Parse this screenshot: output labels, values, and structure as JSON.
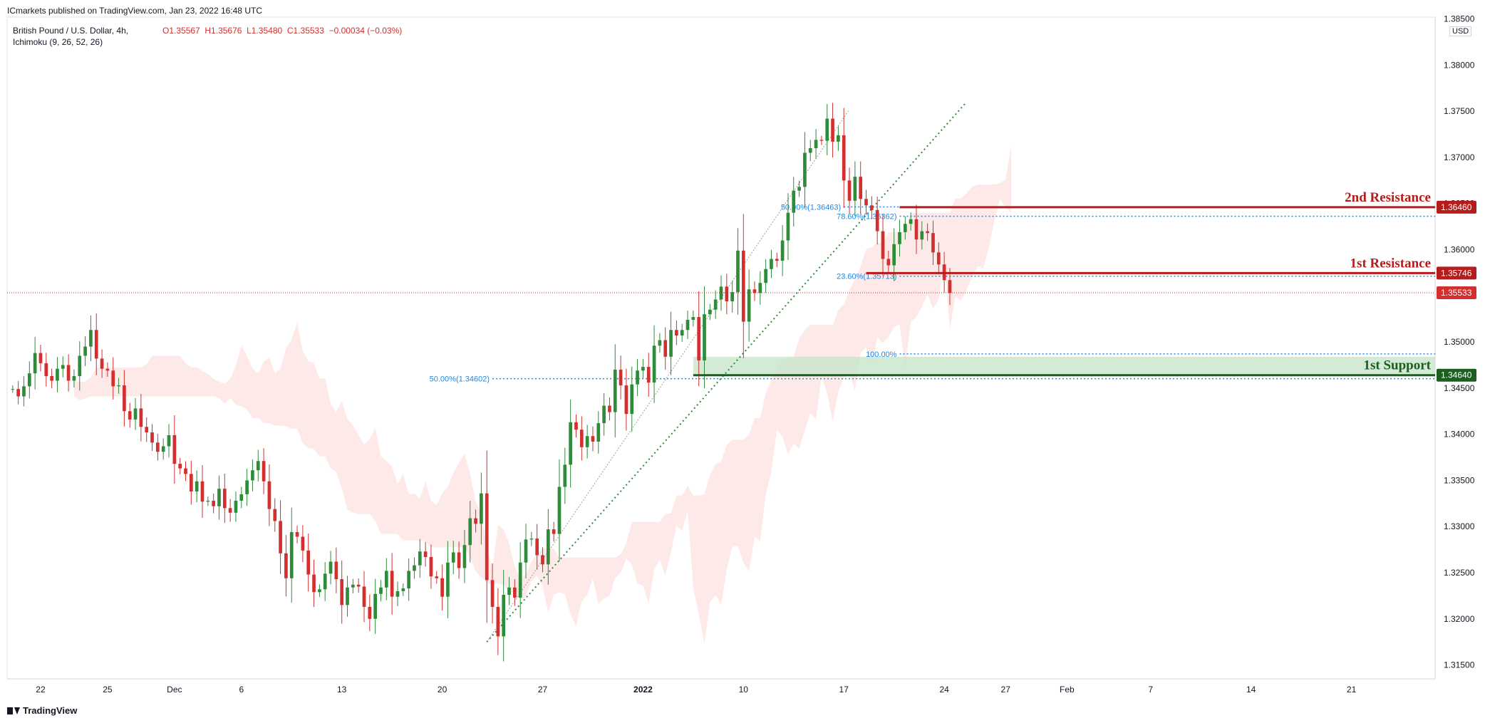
{
  "header": {
    "published": "ICmarkets published on TradingView.com, Jan 23, 2022 16:48 UTC",
    "symbol": "British Pound / U.S. Dollar, 4h,",
    "indicator": "Ichimoku (9, 26, 52, 26)",
    "ohlc": {
      "o": "O1.35567",
      "h": "H1.35676",
      "l": "L1.35480",
      "c": "C1.35533",
      "chg": "−0.00034 (−0.03%)"
    },
    "currency": "USD"
  },
  "footer": {
    "brand": "TradingView"
  },
  "colors": {
    "up": "#26a69a",
    "candle_up": "#2e8b3a",
    "candle_down": "#d32f2f",
    "resistance": "#b71c1c",
    "support": "#1b5e20",
    "fib": "#1e88e5",
    "cloud_red": "#fde2e2",
    "cloud_green": "#e3f2e5",
    "support_zone": "#c8e6c9"
  },
  "chart_data": {
    "type": "candlestick",
    "xaxis_labels": [
      {
        "label": "22",
        "i": 6
      },
      {
        "label": "25",
        "i": 18
      },
      {
        "label": "Dec",
        "i": 30
      },
      {
        "label": "6",
        "i": 42
      },
      {
        "label": "13",
        "i": 60
      },
      {
        "label": "20",
        "i": 78
      },
      {
        "label": "27",
        "i": 96
      },
      {
        "label": "2022",
        "i": 114
      },
      {
        "label": "10",
        "i": 132
      },
      {
        "label": "17",
        "i": 150
      },
      {
        "label": "24",
        "i": 168
      },
      {
        "label": "27",
        "i": 179
      },
      {
        "label": "Feb",
        "i": 190
      },
      {
        "label": "7",
        "i": 205
      },
      {
        "label": "14",
        "i": 223
      },
      {
        "label": "21",
        "i": 241
      }
    ],
    "x_range": [
      0,
      256
    ],
    "ylim": [
      1.3135,
      1.3852
    ],
    "yaxis_ticks": [
      "1.31500",
      "1.32000",
      "1.32500",
      "1.33000",
      "1.33500",
      "1.34000",
      "1.34500",
      "1.35000",
      "1.35500",
      "1.36000",
      "1.36500",
      "1.37000",
      "1.37500",
      "1.38000",
      "1.38500"
    ],
    "price_labels": [
      {
        "label": "1.36460",
        "value": 1.3646,
        "kind": "resistance"
      },
      {
        "label": "1.35746",
        "value": 1.35746,
        "kind": "resistance"
      },
      {
        "label": "1.35533",
        "value": 1.35533,
        "kind": "last"
      },
      {
        "label": "1.34640",
        "value": 1.3464,
        "kind": "support"
      }
    ],
    "levels": [
      {
        "name": "2nd Resistance",
        "value": 1.3646,
        "from_i": 160,
        "color": "resistance"
      },
      {
        "name": "1st Resistance",
        "value": 1.35746,
        "from_i": 154,
        "color": "resistance"
      },
      {
        "name": "1st Support",
        "value": 1.3464,
        "from_i": 123,
        "color": "support"
      }
    ],
    "support_zone": [
      1.3464,
      1.3484
    ],
    "fib_lines": [
      {
        "label": "50.00%(1.36463)",
        "value": 1.36463,
        "from_i": 150,
        "to_i": 256
      },
      {
        "label": "78.60%(1.36362)",
        "value": 1.36362,
        "from_i": 160,
        "to_i": 256
      },
      {
        "label": "23.60%(1.35713)",
        "value": 1.35713,
        "from_i": 160,
        "to_i": 256
      },
      {
        "label": "100.00%",
        "value": 1.3487,
        "from_i": 160,
        "to_i": 256
      },
      {
        "label": "50.00%(1.34602)",
        "value": 1.34602,
        "from_i": 87,
        "to_i": 256
      }
    ],
    "trendline": {
      "from": [
        86,
        1.3175
      ],
      "to": [
        172,
        1.376
      ]
    },
    "channel": {
      "from": [
        86,
        1.3175
      ],
      "to": [
        151,
        1.3752
      ]
    },
    "anchors": [
      {
        "from": [
          0,
          1.3455
        ],
        "to": [
          152,
          1.3752
        ],
        "style": "zigzag"
      }
    ],
    "close_series": [
      1.3449,
      1.3441,
      1.3452,
      1.3466,
      1.3488,
      1.3477,
      1.3463,
      1.3458,
      1.3471,
      1.3475,
      1.3458,
      1.3463,
      1.3485,
      1.3495,
      1.3513,
      1.3482,
      1.3471,
      1.3469,
      1.3452,
      1.3453,
      1.3425,
      1.3416,
      1.3428,
      1.3408,
      1.3402,
      1.3391,
      1.3381,
      1.3387,
      1.3399,
      1.3368,
      1.3363,
      1.3357,
      1.3338,
      1.3349,
      1.3327,
      1.3328,
      1.3322,
      1.3341,
      1.332,
      1.3315,
      1.3328,
      1.3335,
      1.335,
      1.3361,
      1.3371,
      1.3349,
      1.3319,
      1.3306,
      1.3271,
      1.3244,
      1.3294,
      1.3289,
      1.3274,
      1.3248,
      1.3229,
      1.3232,
      1.3249,
      1.3262,
      1.3243,
      1.3215,
      1.3234,
      1.3237,
      1.3235,
      1.3213,
      1.32,
      1.3227,
      1.3234,
      1.3252,
      1.3224,
      1.323,
      1.3233,
      1.3252,
      1.3258,
      1.3273,
      1.3267,
      1.3246,
      1.3244,
      1.3224,
      1.3261,
      1.3272,
      1.3255,
      1.328,
      1.3309,
      1.3303,
      1.3336,
      1.3242,
      1.3213,
      1.3181,
      1.3226,
      1.3234,
      1.3223,
      1.3261,
      1.3286,
      1.3287,
      1.3269,
      1.3259,
      1.3297,
      1.3292,
      1.3343,
      1.3367,
      1.3413,
      1.3405,
      1.3386,
      1.3398,
      1.3392,
      1.3412,
      1.3431,
      1.3424,
      1.347,
      1.3453,
      1.3422,
      1.3454,
      1.3469,
      1.3473,
      1.3456,
      1.3496,
      1.3502,
      1.3484,
      1.3513,
      1.3507,
      1.3513,
      1.3524,
      1.3527,
      1.348,
      1.353,
      1.3535,
      1.3546,
      1.356,
      1.3544,
      1.3554,
      1.3599,
      1.3522,
      1.3557,
      1.3553,
      1.3564,
      1.3579,
      1.359,
      1.3588,
      1.361,
      1.364,
      1.3664,
      1.3668,
      1.3705,
      1.371,
      1.3719,
      1.3718,
      1.3742,
      1.3717,
      1.3724,
      1.3675,
      1.3653,
      1.3679,
      1.3655,
      1.3648,
      1.3643,
      1.362,
      1.359,
      1.3583,
      1.3606,
      1.3619,
      1.3628,
      1.3633,
      1.3611,
      1.362,
      1.3618,
      1.3597,
      1.3584,
      1.3567,
      1.3553
    ]
  }
}
